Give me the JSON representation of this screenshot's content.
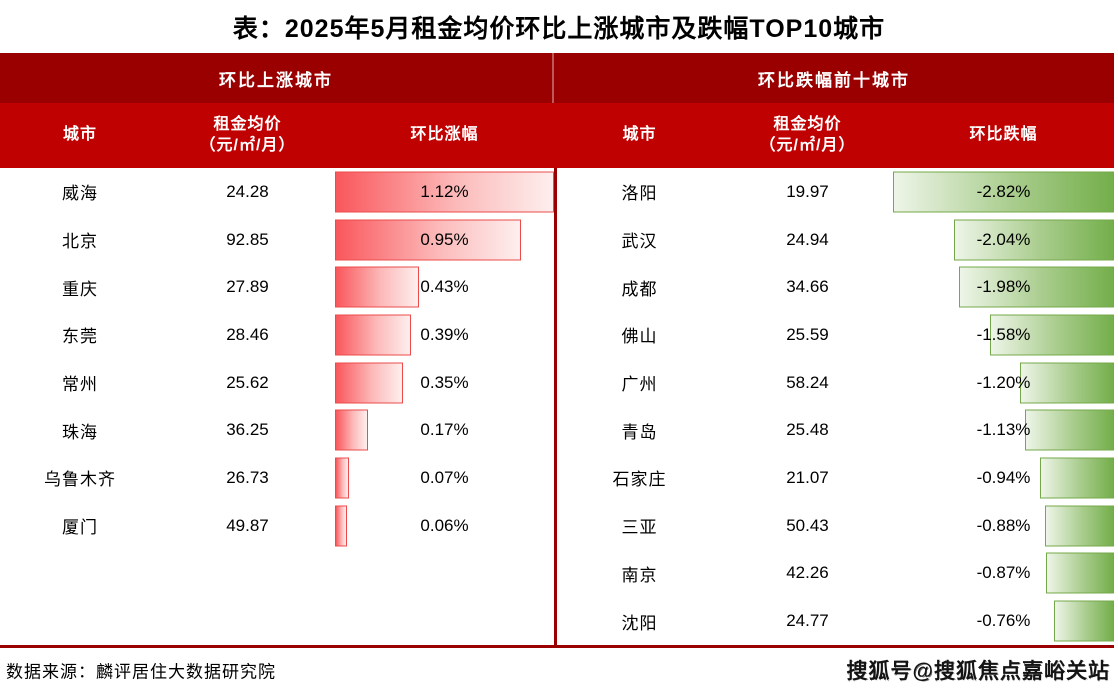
{
  "title": "表：2025年5月租金均价环比上涨城市及跌幅TOP10城市",
  "left": {
    "section_title": "环比上涨城市",
    "columns": {
      "city": "城市",
      "price": "租金均价\n（元/㎡/月）",
      "change": "环比涨幅"
    },
    "rows": [
      {
        "city": "威海",
        "price": "24.28",
        "pct": "1.12%",
        "value": 1.12
      },
      {
        "city": "北京",
        "price": "92.85",
        "pct": "0.95%",
        "value": 0.95
      },
      {
        "city": "重庆",
        "price": "27.89",
        "pct": "0.43%",
        "value": 0.43
      },
      {
        "city": "东莞",
        "price": "28.46",
        "pct": "0.39%",
        "value": 0.39
      },
      {
        "city": "常州",
        "price": "25.62",
        "pct": "0.35%",
        "value": 0.35
      },
      {
        "city": "珠海",
        "price": "36.25",
        "pct": "0.17%",
        "value": 0.17
      },
      {
        "city": "乌鲁木齐",
        "price": "26.73",
        "pct": "0.07%",
        "value": 0.07
      },
      {
        "city": "厦门",
        "price": "49.87",
        "pct": "0.06%",
        "value": 0.06
      }
    ]
  },
  "right": {
    "section_title": "环比跌幅前十城市",
    "columns": {
      "city": "城市",
      "price": "租金均价\n（元/㎡/月）",
      "change": "环比跌幅"
    },
    "rows": [
      {
        "city": "洛阳",
        "price": "19.97",
        "pct": "-2.82%",
        "value": -2.82
      },
      {
        "city": "武汉",
        "price": "24.94",
        "pct": "-2.04%",
        "value": -2.04
      },
      {
        "city": "成都",
        "price": "34.66",
        "pct": "-1.98%",
        "value": -1.98
      },
      {
        "city": "佛山",
        "price": "25.59",
        "pct": "-1.58%",
        "value": -1.58
      },
      {
        "city": "广州",
        "price": "58.24",
        "pct": "-1.20%",
        "value": -1.2
      },
      {
        "city": "青岛",
        "price": "25.48",
        "pct": "-1.13%",
        "value": -1.13
      },
      {
        "city": "石家庄",
        "price": "21.07",
        "pct": "-0.94%",
        "value": -0.94
      },
      {
        "city": "三亚",
        "price": "50.43",
        "pct": "-0.88%",
        "value": -0.88
      },
      {
        "city": "南京",
        "price": "42.26",
        "pct": "-0.87%",
        "value": -0.87
      },
      {
        "city": "沈阳",
        "price": "24.77",
        "pct": "-0.76%",
        "value": -0.76
      }
    ]
  },
  "footer": {
    "source": "数据来源：麟评居住大数据研究院",
    "watermark": "搜狐号@搜狐焦点嘉峪关站"
  },
  "colors": {
    "section_header_bg": "#9A0000",
    "column_header_bg": "#C00101",
    "rise_bar_start": "#F9575C",
    "rise_bar_end": "#FDEFEE",
    "rise_bar_border": "#EC4B4B",
    "fall_bar_start": "#EEF5E8",
    "fall_bar_end": "#74AF4B",
    "fall_bar_border": "#74A84A",
    "divider": "#9B0000"
  },
  "chart_data": [
    {
      "type": "bar",
      "orientation": "horizontal",
      "title": "环比上涨城市",
      "xlabel": "环比涨幅",
      "ylabel": "城市",
      "xlim": [
        0,
        1.12
      ],
      "grid": false,
      "legend_position": "none",
      "categories": [
        "威海",
        "北京",
        "重庆",
        "东莞",
        "常州",
        "珠海",
        "乌鲁木齐",
        "厦门"
      ],
      "series": [
        {
          "name": "环比涨幅(%)",
          "values": [
            1.12,
            0.95,
            0.43,
            0.39,
            0.35,
            0.17,
            0.07,
            0.06
          ]
        },
        {
          "name": "租金均价(元/㎡/月)",
          "values": [
            24.28,
            92.85,
            27.89,
            28.46,
            25.62,
            36.25,
            26.73,
            49.87
          ]
        }
      ]
    },
    {
      "type": "bar",
      "orientation": "horizontal",
      "title": "环比跌幅前十城市",
      "xlabel": "环比跌幅",
      "ylabel": "城市",
      "xlim": [
        -2.82,
        0
      ],
      "grid": false,
      "legend_position": "none",
      "categories": [
        "洛阳",
        "武汉",
        "成都",
        "佛山",
        "广州",
        "青岛",
        "石家庄",
        "三亚",
        "南京",
        "沈阳"
      ],
      "series": [
        {
          "name": "环比跌幅(%)",
          "values": [
            -2.82,
            -2.04,
            -1.98,
            -1.58,
            -1.2,
            -1.13,
            -0.94,
            -0.88,
            -0.87,
            -0.76
          ]
        },
        {
          "name": "租金均价(元/㎡/月)",
          "values": [
            19.97,
            24.94,
            34.66,
            25.59,
            58.24,
            25.48,
            21.07,
            50.43,
            42.26,
            24.77
          ]
        }
      ]
    }
  ]
}
